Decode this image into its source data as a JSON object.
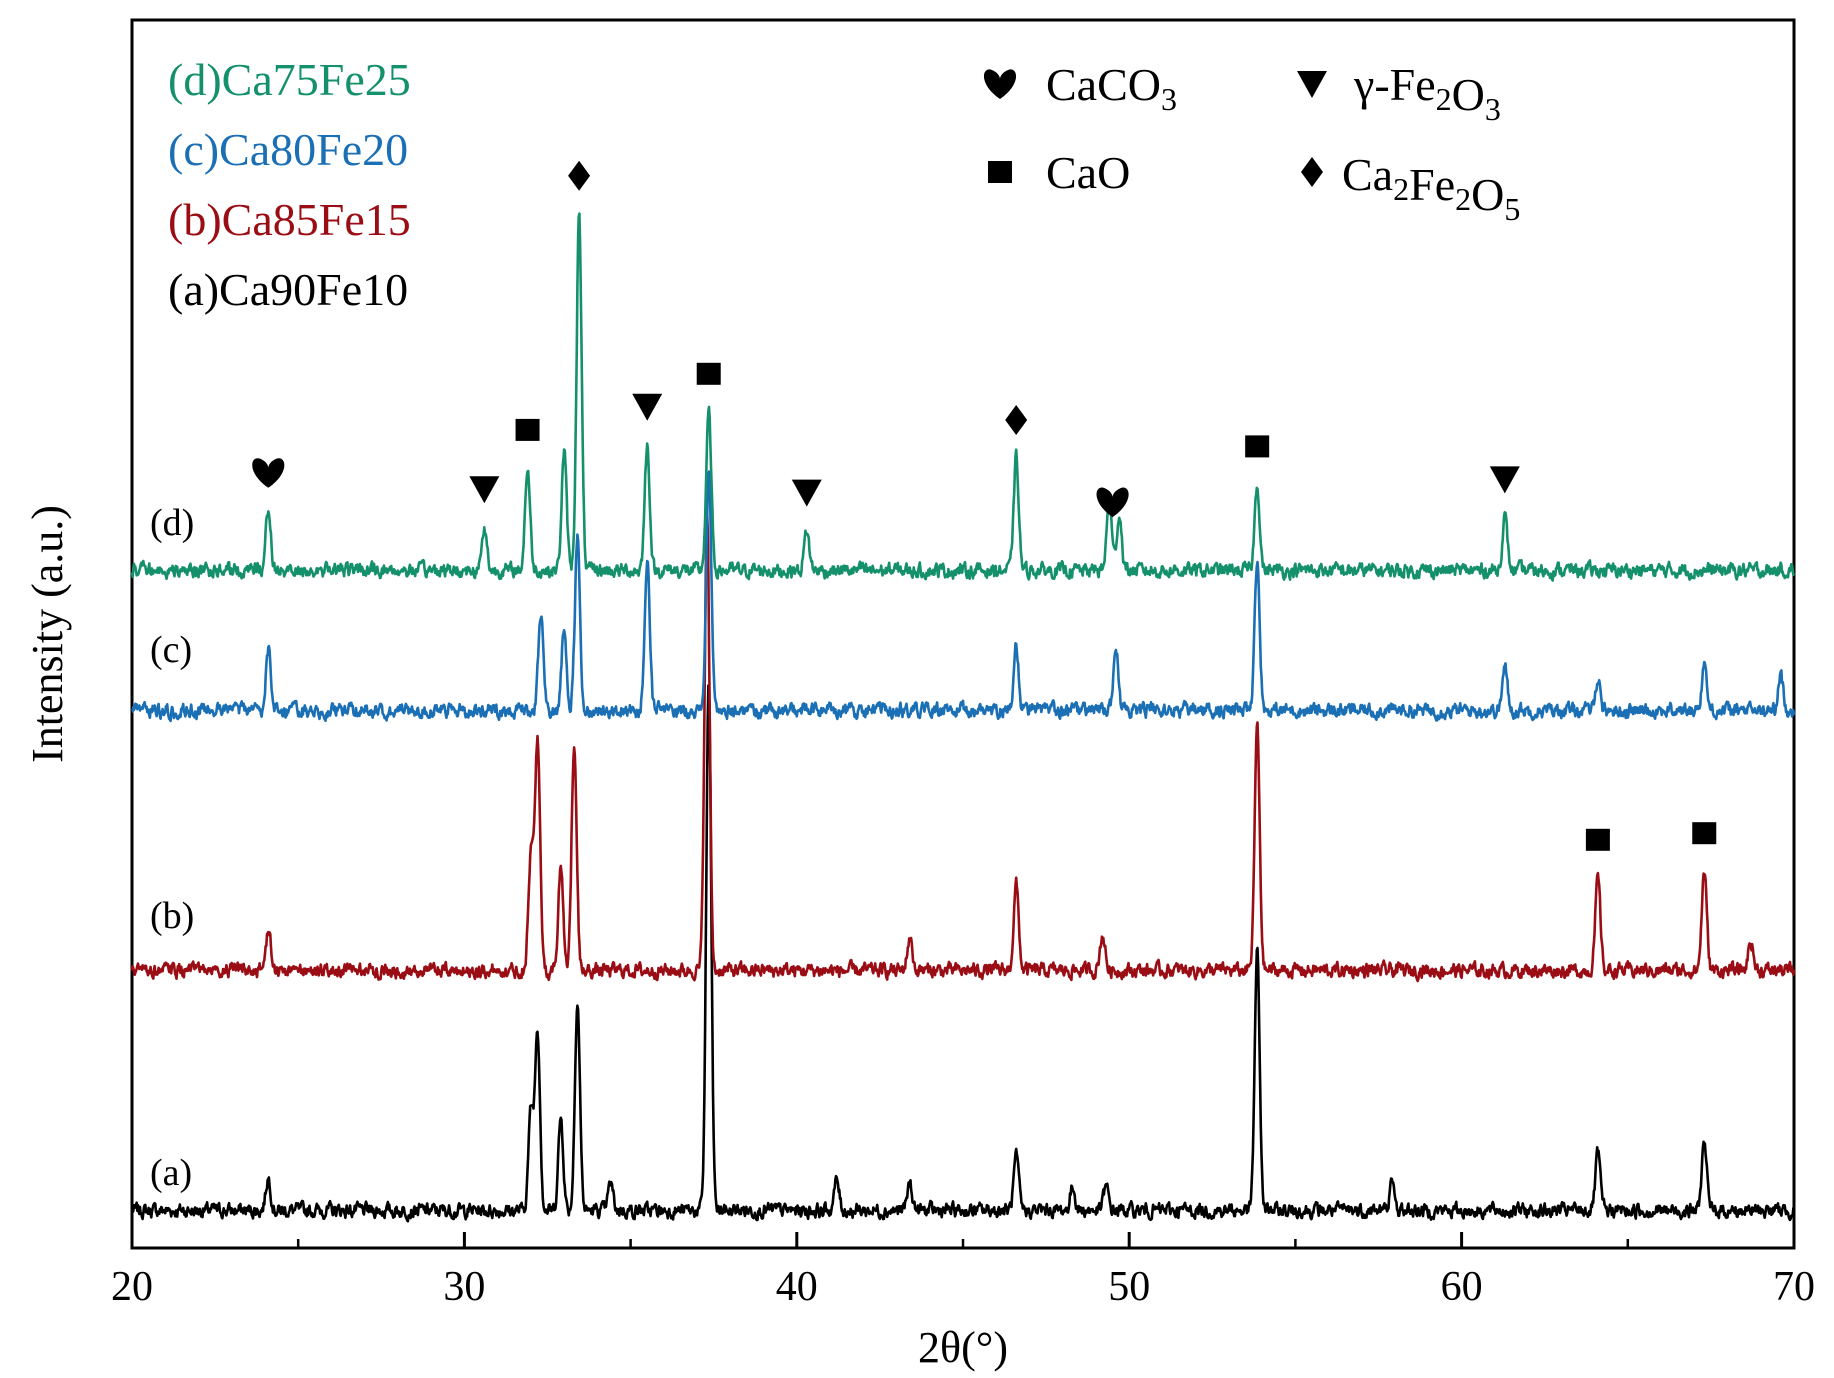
{
  "chart_data": {
    "type": "line",
    "xlabel": "2θ(°)",
    "ylabel": "Intensity (a.u.)",
    "xlim": [
      20,
      70
    ],
    "x_ticks": [
      20,
      30,
      40,
      50,
      60,
      70
    ],
    "x_minor_step": 5,
    "y_ticks_shown": false,
    "grid": false,
    "colors": {
      "a": "#000000",
      "b": "#9b0d14",
      "c": "#1a6fb5",
      "d": "#14906a"
    },
    "legend_position": "top-left",
    "legend": [
      {
        "key": "d",
        "text": "(d)Ca75Fe25",
        "color": "#14906a"
      },
      {
        "key": "c",
        "text": "(c)Ca80Fe20",
        "color": "#1a6fb5"
      },
      {
        "key": "b",
        "text": "(b)Ca85Fe15",
        "color": "#9b0d14"
      },
      {
        "key": "a",
        "text": "(a)Ca90Fe10",
        "color": "#000000"
      }
    ],
    "phase_legend": [
      {
        "symbol": "heart",
        "base": "CaCO",
        "sub": "3",
        "tail": ""
      },
      {
        "symbol": "triangle-down",
        "base": "γ-Fe",
        "sub": "2",
        "mid": "O",
        "sub2": "3"
      },
      {
        "symbol": "square",
        "base": "CaO"
      },
      {
        "symbol": "diamond",
        "base": "Ca",
        "sub": "2",
        "mid": "Fe",
        "sub2": "2",
        "mid2": "O",
        "sub3": "5"
      }
    ],
    "series": [
      {
        "name": "(a)Ca90Fe10",
        "label": "(a)",
        "color": "#000000",
        "peaks": [
          {
            "x": 24.1,
            "h": 0.1
          },
          {
            "x": 32.0,
            "h": 0.3
          },
          {
            "x": 32.2,
            "h": 0.55
          },
          {
            "x": 32.9,
            "h": 0.28
          },
          {
            "x": 33.4,
            "h": 0.64
          },
          {
            "x": 34.4,
            "h": 0.08
          },
          {
            "x": 37.35,
            "h": 1.6
          },
          {
            "x": 41.2,
            "h": 0.09
          },
          {
            "x": 43.4,
            "h": 0.08
          },
          {
            "x": 46.6,
            "h": 0.16
          },
          {
            "x": 48.3,
            "h": 0.07
          },
          {
            "x": 49.3,
            "h": 0.07
          },
          {
            "x": 53.85,
            "h": 0.78
          },
          {
            "x": 57.9,
            "h": 0.08
          },
          {
            "x": 64.1,
            "h": 0.17
          },
          {
            "x": 67.3,
            "h": 0.21
          }
        ]
      },
      {
        "name": "(b)Ca85Fe15",
        "label": "(b)",
        "color": "#9b0d14",
        "peaks": [
          {
            "x": 24.1,
            "h": 0.12
          },
          {
            "x": 32.0,
            "h": 0.36
          },
          {
            "x": 32.2,
            "h": 0.7
          },
          {
            "x": 32.9,
            "h": 0.32
          },
          {
            "x": 33.3,
            "h": 0.68
          },
          {
            "x": 37.3,
            "h": 1.38
          },
          {
            "x": 43.4,
            "h": 0.1
          },
          {
            "x": 46.6,
            "h": 0.26
          },
          {
            "x": 49.2,
            "h": 0.11
          },
          {
            "x": 53.85,
            "h": 0.74
          },
          {
            "x": 64.1,
            "h": 0.28
          },
          {
            "x": 67.3,
            "h": 0.3
          },
          {
            "x": 68.7,
            "h": 0.09
          }
        ]
      },
      {
        "name": "(c)Ca80Fe20",
        "label": "(c)",
        "color": "#1a6fb5",
        "peaks": [
          {
            "x": 24.1,
            "h": 0.18
          },
          {
            "x": 32.3,
            "h": 0.29
          },
          {
            "x": 33.0,
            "h": 0.25
          },
          {
            "x": 33.4,
            "h": 0.52
          },
          {
            "x": 35.5,
            "h": 0.46
          },
          {
            "x": 37.35,
            "h": 0.72
          },
          {
            "x": 46.6,
            "h": 0.19
          },
          {
            "x": 49.6,
            "h": 0.19
          },
          {
            "x": 53.85,
            "h": 0.46
          },
          {
            "x": 61.3,
            "h": 0.13
          },
          {
            "x": 64.1,
            "h": 0.1
          },
          {
            "x": 67.3,
            "h": 0.14
          },
          {
            "x": 69.6,
            "h": 0.1
          }
        ]
      },
      {
        "name": "(d)Ca75Fe25",
        "label": "(d)",
        "color": "#14906a",
        "peaks": [
          {
            "x": 24.1,
            "h": 0.18
          },
          {
            "x": 30.6,
            "h": 0.13
          },
          {
            "x": 31.9,
            "h": 0.31
          },
          {
            "x": 33.0,
            "h": 0.36
          },
          {
            "x": 33.45,
            "h": 1.08
          },
          {
            "x": 35.5,
            "h": 0.38
          },
          {
            "x": 37.35,
            "h": 0.48
          },
          {
            "x": 40.3,
            "h": 0.12
          },
          {
            "x": 46.6,
            "h": 0.34
          },
          {
            "x": 49.4,
            "h": 0.21
          },
          {
            "x": 49.7,
            "h": 0.17
          },
          {
            "x": 53.85,
            "h": 0.26
          },
          {
            "x": 61.3,
            "h": 0.16
          }
        ]
      }
    ],
    "phase_markers": [
      {
        "series": "d",
        "symbol": "heart",
        "x": 24.1
      },
      {
        "series": "d",
        "symbol": "triangle-down",
        "x": 30.6
      },
      {
        "series": "d",
        "symbol": "square",
        "x": 31.9
      },
      {
        "series": "d",
        "symbol": "diamond",
        "x": 33.45
      },
      {
        "series": "d",
        "symbol": "triangle-down",
        "x": 35.5
      },
      {
        "series": "d",
        "symbol": "square",
        "x": 37.35
      },
      {
        "series": "d",
        "symbol": "triangle-down",
        "x": 40.3
      },
      {
        "series": "d",
        "symbol": "diamond",
        "x": 46.6
      },
      {
        "series": "d",
        "symbol": "heart",
        "x": 49.5
      },
      {
        "series": "d",
        "symbol": "square",
        "x": 53.85
      },
      {
        "series": "d",
        "symbol": "triangle-down",
        "x": 61.3
      },
      {
        "series": "b",
        "symbol": "square",
        "x": 64.1
      },
      {
        "series": "b",
        "symbol": "square",
        "x": 67.3
      }
    ]
  }
}
